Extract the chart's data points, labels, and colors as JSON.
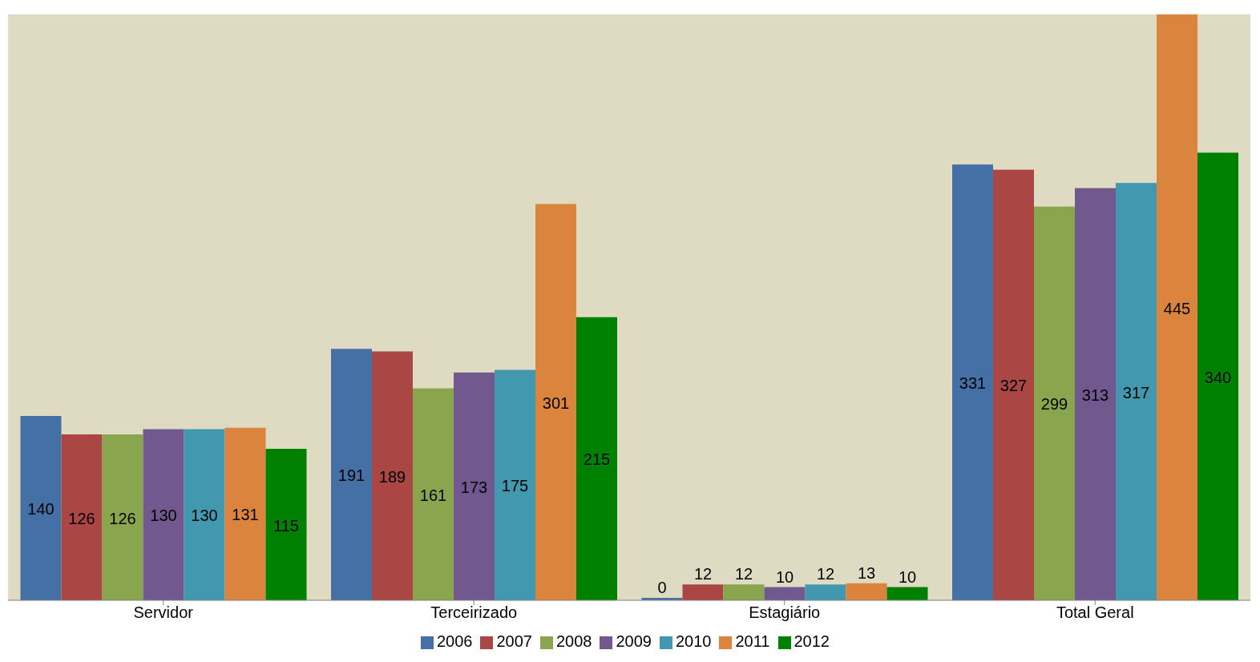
{
  "chart_data": {
    "type": "bar",
    "categories": [
      "Servidor",
      "Terceirizado",
      "Estagiário",
      "Total Geral"
    ],
    "series": [
      {
        "name": "2006",
        "color": "#4470a5",
        "values": [
          140,
          191,
          0,
          331
        ]
      },
      {
        "name": "2007",
        "color": "#aa4644",
        "values": [
          126,
          189,
          12,
          327
        ]
      },
      {
        "name": "2008",
        "color": "#89a54e",
        "values": [
          126,
          161,
          12,
          299
        ]
      },
      {
        "name": "2009",
        "color": "#71588f",
        "values": [
          130,
          173,
          10,
          313
        ]
      },
      {
        "name": "2010",
        "color": "#4198af",
        "values": [
          130,
          175,
          12,
          317
        ]
      },
      {
        "name": "2011",
        "color": "#db843d",
        "values": [
          131,
          301,
          13,
          445
        ]
      },
      {
        "name": "2012",
        "color": "#008000",
        "values": [
          115,
          215,
          10,
          340
        ]
      }
    ],
    "data_labels": true,
    "legend": "bottom"
  }
}
